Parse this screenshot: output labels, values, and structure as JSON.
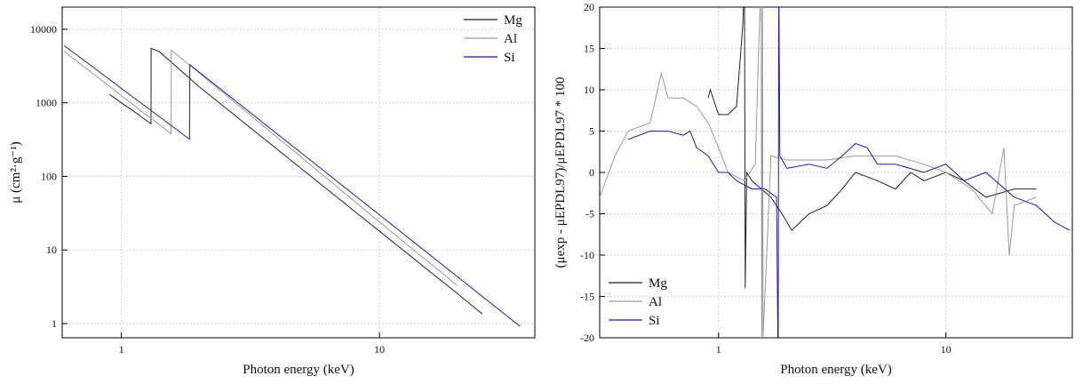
{
  "chart_data": [
    {
      "type": "line",
      "xscale": "log",
      "yscale": "log",
      "grid": true,
      "legend": "upper right",
      "x_label": "Photon energy (keV)",
      "y_label": "μ (cm²·g⁻¹)",
      "xlim": [
        0.59,
        40
      ],
      "ylim": [
        0.64,
        20000
      ],
      "xticks": [
        1,
        10
      ],
      "yticks": [
        1,
        10,
        100,
        1000,
        10000
      ],
      "series": [
        {
          "name": "Mg",
          "color": "#222222",
          "x": [
            0.9,
            1.0,
            1.1,
            1.2,
            1.303,
            1.305,
            1.4,
            2,
            5,
            10,
            20,
            25
          ],
          "values": [
            1300,
            1000,
            800,
            640,
            520,
            5500,
            5000,
            1660,
            126,
            18,
            2.57,
            1.35
          ]
        },
        {
          "name": "Al",
          "color": "#9a9a9a",
          "x": [
            0.6,
            0.8,
            1.0,
            1.2,
            1.4,
            1.558,
            1.562,
            2,
            5,
            10,
            20
          ],
          "values": [
            5000,
            2300,
            1260,
            760,
            510,
            380,
            5200,
            2550,
            180,
            24,
            3.3
          ]
        },
        {
          "name": "Si",
          "color": "#1c1ca8",
          "x": [
            0.6,
            0.8,
            1.0,
            1.2,
            1.5,
            1.838,
            1.842,
            2,
            5,
            10,
            20,
            35
          ],
          "values": [
            6000,
            2830,
            1575,
            975,
            545,
            320,
            3300,
            2625,
            206,
            30,
            4.36,
            0.92
          ]
        }
      ]
    },
    {
      "type": "line",
      "xscale": "log",
      "yscale": "linear",
      "grid": true,
      "legend": "lower left",
      "x_label": "Photon energy (keV)",
      "y_label": "(μexp - μEPDL97)/μEPDL97 * 100",
      "xlim": [
        0.3,
        36
      ],
      "ylim": [
        -20,
        20
      ],
      "xticks": [
        1,
        10
      ],
      "yticks": [
        -20,
        -15,
        -10,
        -5,
        0,
        5,
        10,
        15,
        20
      ],
      "series": [
        {
          "name": "Mg",
          "color": "#222222",
          "x": [
            0.9,
            0.92,
            1.0,
            1.1,
            1.2,
            1.28,
            1.3,
            1.31,
            1.33,
            1.4,
            1.7,
            1.9,
            2.1,
            2.5,
            3,
            3.5,
            4,
            5,
            6,
            7,
            8,
            10,
            12,
            15,
            20,
            25
          ],
          "values": [
            9,
            10,
            7,
            7,
            8,
            18,
            25,
            -14,
            0,
            -1,
            -3,
            -5,
            -7,
            -5,
            -4,
            -2,
            0,
            -1,
            -2,
            0,
            -1,
            0,
            -1,
            -3,
            -2,
            -2
          ]
        },
        {
          "name": "Al",
          "color": "#9a9a9a",
          "x": [
            0.3,
            0.35,
            0.4,
            0.5,
            0.56,
            0.6,
            0.7,
            0.8,
            0.9,
            1.0,
            1.1,
            1.3,
            1.45,
            1.54,
            1.55,
            1.56,
            1.57,
            1.7,
            2,
            3,
            4,
            5,
            6,
            8,
            10,
            13,
            16,
            18,
            19,
            20,
            25
          ],
          "values": [
            -3,
            2,
            5,
            6,
            12,
            9,
            9,
            8,
            6,
            3,
            0,
            -1,
            1,
            25,
            -25,
            22,
            -20,
            2,
            1.5,
            1.5,
            2,
            2,
            2,
            1,
            0,
            -2,
            -5,
            3,
            -10,
            -4,
            -3
          ]
        },
        {
          "name": "Si",
          "color": "#1c1ca8",
          "x": [
            0.4,
            0.5,
            0.6,
            0.7,
            0.75,
            0.8,
            0.9,
            1.0,
            1.1,
            1.2,
            1.4,
            1.6,
            1.8,
            1.83,
            1.84,
            1.86,
            2,
            2.5,
            3,
            3.5,
            4,
            4.5,
            5,
            6,
            8,
            10,
            12,
            15,
            20,
            25,
            30,
            35
          ],
          "values": [
            4,
            5,
            5,
            4.5,
            5,
            3,
            2,
            0,
            0,
            -1,
            -2,
            -2,
            -3,
            -25,
            25,
            2,
            0.5,
            1,
            0.5,
            2,
            3.5,
            3,
            1,
            1,
            0,
            1,
            -1,
            0,
            -3,
            -4,
            -6,
            -7
          ]
        }
      ]
    }
  ]
}
